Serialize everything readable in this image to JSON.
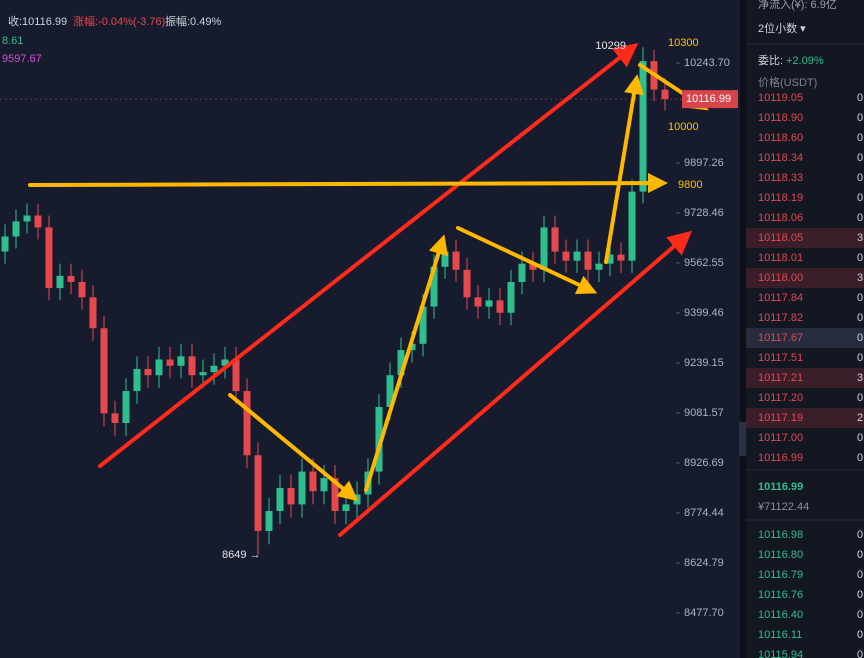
{
  "header": {
    "close": "收:10116.99",
    "change": "涨幅:-0.04%(-3.76)",
    "amplitude": "振幅:0.49%",
    "ma_a": "8.61",
    "ma_b": "9597.67"
  },
  "chart_data": {
    "type": "candlestick",
    "log_scale": true,
    "grid": false,
    "ylim": [
      8347,
      10468
    ],
    "yticks": [
      {
        "value": 10243.7,
        "label": "10243.70"
      },
      9897.26,
      9728.46,
      9562.55,
      9399.46,
      9239.15,
      9081.57,
      8926.69,
      8774.44,
      8624.79,
      {
        "value": 8477.7,
        "label": "8477.70"
      }
    ],
    "up_color": "#2fbf8f",
    "down_color": "#e5484d",
    "open": [
      9600,
      9650,
      9700,
      9720,
      9680,
      9480,
      9520,
      9500,
      9450,
      9350,
      9080,
      9050,
      9150,
      9220,
      9200,
      9250,
      9230,
      9260,
      9200,
      9210,
      9230,
      9250,
      9150,
      8950,
      8720,
      8780,
      8850,
      8800,
      8900,
      8840,
      8880,
      8780,
      8800,
      8830,
      8900,
      9100,
      9200,
      9280,
      9300,
      9420,
      9550,
      9600,
      9540,
      9450,
      9420,
      9440,
      9400,
      9500,
      9560,
      9540,
      9680,
      9600,
      9570,
      9600,
      9540,
      9560,
      9590,
      9570,
      9800,
      10250,
      10150
    ],
    "high": [
      9690,
      9740,
      9760,
      9760,
      9720,
      9560,
      9560,
      9540,
      9490,
      9390,
      9120,
      9190,
      9260,
      9260,
      9290,
      9290,
      9300,
      9300,
      9250,
      9270,
      9290,
      9290,
      9190,
      8990,
      8820,
      8890,
      8890,
      8940,
      8940,
      8920,
      8920,
      8840,
      8870,
      8940,
      9140,
      9240,
      9320,
      9340,
      9460,
      9590,
      9640,
      9640,
      9580,
      9490,
      9480,
      9480,
      9540,
      9600,
      9600,
      9720,
      9720,
      9640,
      9640,
      9640,
      9600,
      9630,
      9630,
      9840,
      10299,
      10290,
      10190
    ],
    "low": [
      9560,
      9610,
      9660,
      9640,
      9440,
      9440,
      9460,
      9410,
      9310,
      9040,
      9010,
      9010,
      9110,
      9160,
      9160,
      9190,
      9190,
      9160,
      9160,
      9170,
      9190,
      9110,
      8910,
      8649,
      8680,
      8740,
      8760,
      8760,
      8800,
      8800,
      8740,
      8740,
      8760,
      8790,
      8860,
      9060,
      9160,
      9240,
      9260,
      9380,
      9510,
      9500,
      9410,
      9380,
      9380,
      9360,
      9360,
      9460,
      9500,
      9500,
      9560,
      9530,
      9530,
      9500,
      9500,
      9520,
      9530,
      9530,
      9760,
      10110,
      10077
    ],
    "close": [
      9650,
      9700,
      9720,
      9680,
      9480,
      9520,
      9500,
      9450,
      9350,
      9080,
      9050,
      9150,
      9220,
      9200,
      9250,
      9230,
      9260,
      9200,
      9210,
      9230,
      9250,
      9150,
      8950,
      8720,
      8780,
      8850,
      8800,
      8900,
      8840,
      8880,
      8780,
      8800,
      8830,
      8900,
      9100,
      9200,
      9280,
      9300,
      9420,
      9550,
      9600,
      9540,
      9450,
      9420,
      9440,
      9400,
      9500,
      9560,
      9540,
      9680,
      9600,
      9570,
      9600,
      9540,
      9560,
      9590,
      9570,
      9800,
      10250,
      10150,
      10116.99
    ],
    "last_price": 10116.99,
    "annotations": [
      "10300",
      "10000",
      "9800",
      "10299",
      "8649 →"
    ]
  },
  "order_book": {
    "net_inflow": "净流入(¥): 6.9亿",
    "precision": "2位小数 ▾",
    "ratio_label": "委比:",
    "ratio": "+2.09%",
    "price_header": "价格(USDT)",
    "asks": [
      [
        "10119.05",
        "0"
      ],
      [
        "10118.90",
        "0"
      ],
      [
        "10118.60",
        "0"
      ],
      [
        "10118.34",
        "0"
      ],
      [
        "10118.33",
        "0"
      ],
      [
        "10118.19",
        "0"
      ],
      [
        "10118.06",
        "0"
      ],
      [
        "10118.05",
        "3"
      ],
      [
        "10118.01",
        "0"
      ],
      [
        "10118.00",
        "3"
      ],
      [
        "10117.84",
        "0"
      ],
      [
        "10117.82",
        "0"
      ],
      [
        "10117.67",
        "0"
      ],
      [
        "10117.51",
        "0"
      ],
      [
        "10117.21",
        "3"
      ],
      [
        "10117.20",
        "0"
      ],
      [
        "10117.19",
        "2"
      ],
      [
        "10117.00",
        "0"
      ],
      [
        "10116.99",
        "0"
      ]
    ],
    "last": "10116.99",
    "last_cny": "¥71122.44",
    "bids": [
      [
        "10116.98",
        "0"
      ],
      [
        "10116.80",
        "0"
      ],
      [
        "10116.79",
        "0"
      ],
      [
        "10116.76",
        "0"
      ],
      [
        "10116.40",
        "0"
      ],
      [
        "10116.11",
        "0"
      ],
      [
        "10115.94",
        "0"
      ]
    ]
  }
}
